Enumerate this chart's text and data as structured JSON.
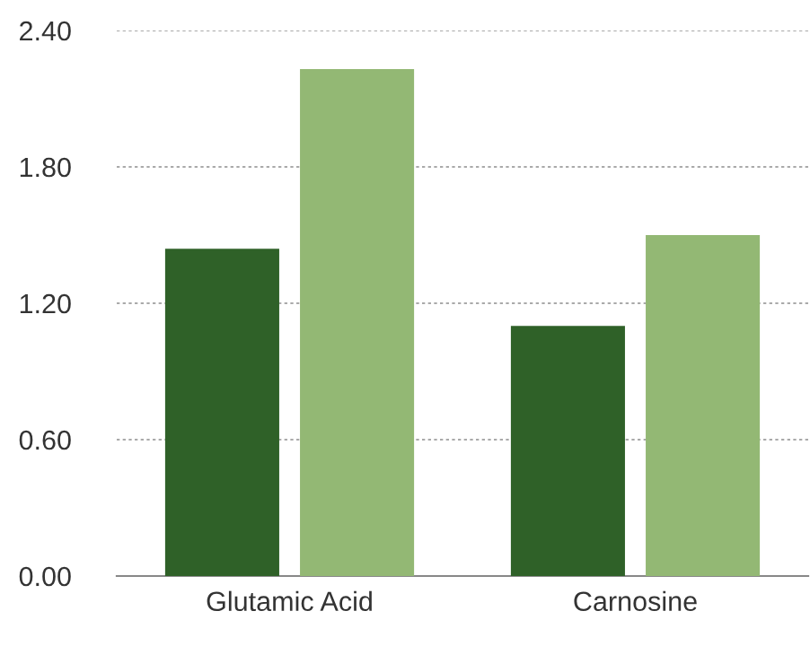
{
  "chart_data": {
    "type": "bar",
    "categories": [
      "Glutamic Acid",
      "Carnosine"
    ],
    "series": [
      {
        "color": "#2f6128",
        "values": [
          1.44,
          1.1
        ]
      },
      {
        "color": "#93b874",
        "values": [
          2.23,
          1.5
        ]
      }
    ],
    "ylim": [
      0,
      2.4
    ],
    "yticks": [
      {
        "value": 0,
        "label": "0.00"
      },
      {
        "value": 0.6,
        "label": "0.60"
      },
      {
        "value": 1.2,
        "label": "1.20"
      },
      {
        "value": 1.8,
        "label": "1.80"
      },
      {
        "value": 2.4,
        "label": "2.40"
      }
    ],
    "grid": "y"
  }
}
